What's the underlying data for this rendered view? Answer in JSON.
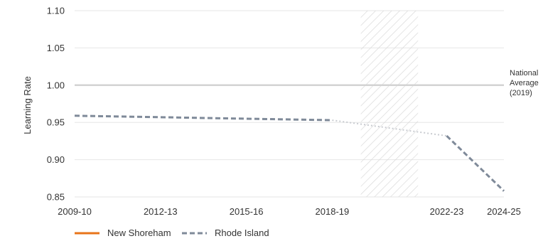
{
  "chart_data": {
    "type": "line",
    "title": "",
    "xlabel": "",
    "ylabel": "Learning Rate",
    "ylim": [
      0.85,
      1.1
    ],
    "y_ticks": [
      "1.10",
      "1.05",
      "1.00",
      "0.95",
      "0.90",
      "0.85"
    ],
    "x_ticks": [
      "2009-10",
      "2012-13",
      "2015-16",
      "2018-19",
      "2022-23",
      "2024-25"
    ],
    "x_years": [
      2009,
      2012,
      2015,
      2018,
      2022,
      2024
    ],
    "grid": "horizontal",
    "legend_position": "bottom-left",
    "reference_line": {
      "value": 1.0,
      "label_lines": [
        "National",
        "Average",
        "(2019)"
      ],
      "color": "#d3d3d3"
    },
    "shaded_period": {
      "x_start": 2019,
      "x_end": 2021
    },
    "series": [
      {
        "name": "New Shoreham",
        "color": "#e8741a",
        "style": "solid",
        "x": [],
        "y": []
      },
      {
        "name": "Rhode Island",
        "color": "#7f8a99",
        "style": "dashed",
        "x": [
          2009,
          2018,
          2022,
          2024
        ],
        "y": [
          0.959,
          0.953,
          0.932,
          0.858
        ],
        "interpolated_segment": [
          2018,
          2022
        ]
      }
    ]
  }
}
